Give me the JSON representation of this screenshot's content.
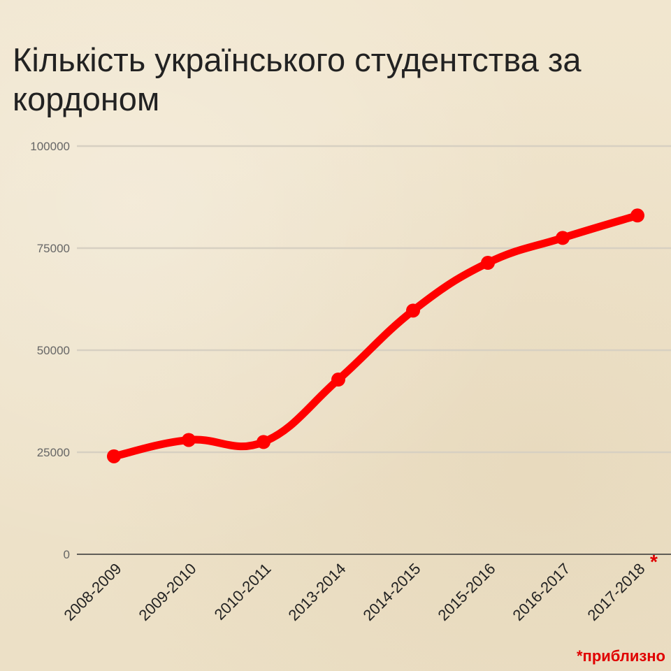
{
  "title": "Кількість українського студентства за кордоном",
  "footnote": "*приблизно",
  "colors": {
    "line": "#ff0000",
    "grid": "#d7d0c2",
    "axis": "#333333",
    "tick_label": "#666666",
    "footnote": "#e00000"
  },
  "chart_data": {
    "type": "line",
    "title": "Кількість українського студентства за кордоном",
    "xlabel": "",
    "ylabel": "",
    "categories": [
      "2008-2009",
      "2009-2010",
      "2010-2011",
      "2013-2014",
      "2014-2015",
      "2015-2016",
      "2016-2017",
      "2017-2018"
    ],
    "category_markers": [
      "",
      "",
      "",
      "",
      "",
      "",
      "",
      "*"
    ],
    "values": [
      24000,
      28000,
      27500,
      42800,
      59700,
      71400,
      77500,
      83000
    ],
    "ylim": [
      0,
      100000
    ],
    "yticks": [
      "0",
      "25000",
      "50000",
      "75000",
      "100000"
    ],
    "grid": true,
    "legend": "none"
  }
}
